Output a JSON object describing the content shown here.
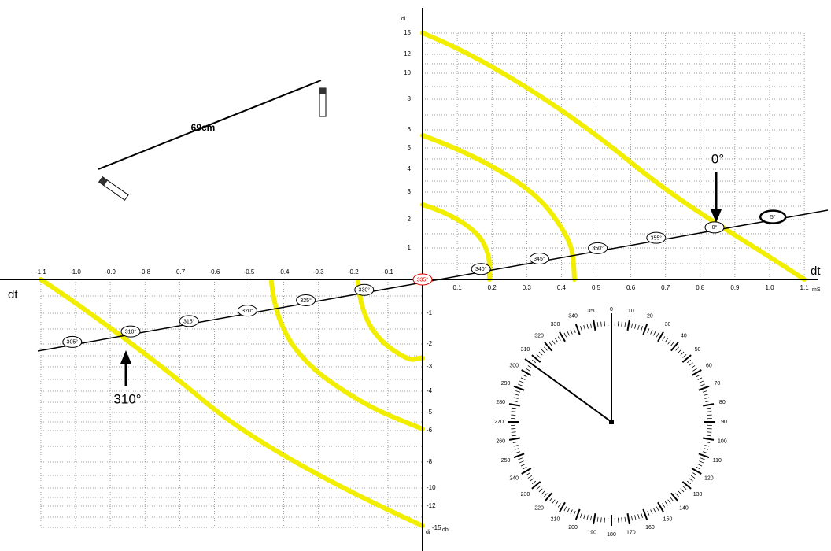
{
  "probe": {
    "distance": "69cm"
  },
  "axes": {
    "x_left_label": "dt",
    "x_right_label": "dt",
    "x_unit": "mS",
    "y_top_label": "di",
    "y_bottom_label": "di",
    "y_bottom_unit": "db",
    "x_ticks_negative": [
      "-1.1",
      "-1.0",
      "-0.9",
      "-0.8",
      "-0.7",
      "-0.6",
      "-0.5",
      "-0.4",
      "-0.3",
      "-0.2",
      "-0.1"
    ],
    "x_ticks_positive": [
      "0.1",
      "0.2",
      "0.3",
      "0.4",
      "0.5",
      "0.6",
      "0.7",
      "0.8",
      "0.9",
      "1.0",
      "1.1"
    ],
    "y_ticks_top": [
      "15",
      "12",
      "10",
      "8",
      "6",
      "5",
      "4",
      "3",
      "2",
      "1"
    ],
    "y_ticks_bottom": [
      "-1",
      "-2",
      "-3",
      "-4",
      "-5",
      "-6",
      "-8",
      "-10",
      "-12",
      "-15"
    ]
  },
  "angle_markers": [
    "305°",
    "310°",
    "315°",
    "320°",
    "325°",
    "330°",
    "335°",
    "340°",
    "345°",
    "350°",
    "355°",
    "0°",
    "5°"
  ],
  "annotations": [
    "0°",
    "310°"
  ],
  "dial_labels": [
    "0",
    "10",
    "20",
    "30",
    "40",
    "50",
    "60",
    "70",
    "80",
    "90",
    "100",
    "110",
    "120",
    "130",
    "140",
    "150",
    "160",
    "170",
    "180",
    "190",
    "200",
    "210",
    "220",
    "230",
    "240",
    "250",
    "260",
    "270",
    "280",
    "290",
    "300",
    "310",
    "320",
    "330",
    "340",
    "350"
  ]
}
